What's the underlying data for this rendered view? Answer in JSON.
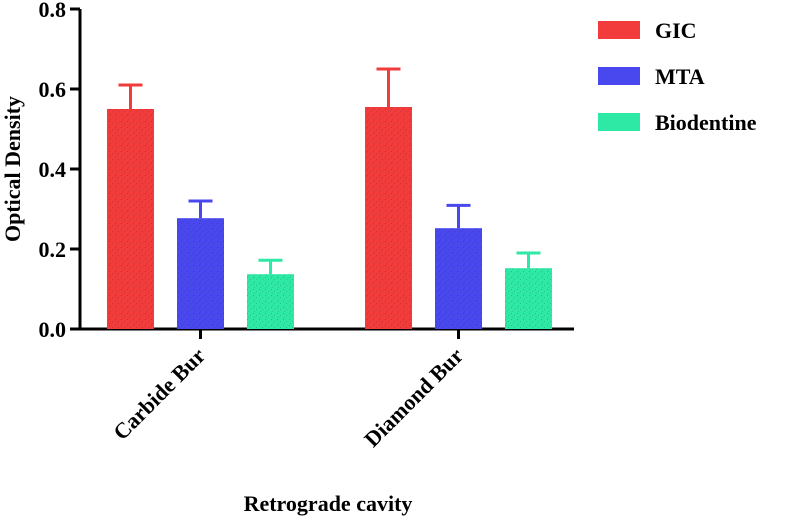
{
  "chart_data": {
    "type": "bar",
    "title": "",
    "xlabel": "Retrograde cavity",
    "ylabel": "Optical Density",
    "ylim": [
      0,
      0.8
    ],
    "yticks": [
      "0.0",
      "0.2",
      "0.4",
      "0.6",
      "0.8"
    ],
    "ytick_values": [
      0,
      0.2,
      0.4,
      0.6,
      0.8
    ],
    "categories": [
      "Carbide Bur",
      "Diamond Bur"
    ],
    "series": [
      {
        "name": "GIC",
        "color": "#f23b3b",
        "values": [
          0.55,
          0.555
        ],
        "errors": [
          0.06,
          0.095
        ]
      },
      {
        "name": "MTA",
        "color": "#4848ee",
        "values": [
          0.277,
          0.252
        ],
        "errors": [
          0.043,
          0.057
        ]
      },
      {
        "name": "Biodentine",
        "color": "#2ee8a5",
        "values": [
          0.137,
          0.152
        ],
        "errors": [
          0.035,
          0.038
        ]
      }
    ],
    "legend_position": "top-right",
    "grid": false
  }
}
